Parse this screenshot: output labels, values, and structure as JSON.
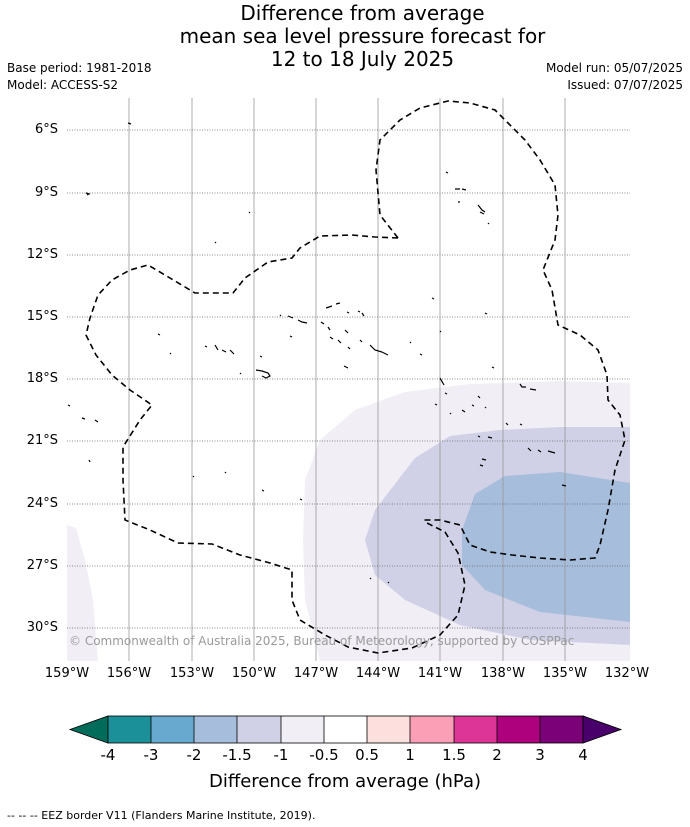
{
  "title": {
    "line1": "Difference from average",
    "line2": "mean sea level pressure forecast for",
    "line3": "12 to 18 July 2025"
  },
  "meta": {
    "base_period": "Base period: 1981-2018",
    "model": "Model: ACCESS-S2",
    "model_run": "Model run: 05/07/2025",
    "issued": "Issued: 07/07/2025"
  },
  "map": {
    "lat_labels": [
      "6°S",
      "9°S",
      "12°S",
      "15°S",
      "18°S",
      "21°S",
      "24°S",
      "27°S",
      "30°S"
    ],
    "lon_labels": [
      "159°W",
      "156°W",
      "153°W",
      "150°W",
      "147°W",
      "144°W",
      "141°W",
      "138°W",
      "135°W",
      "132°W"
    ],
    "copyright": "© Commonwealth of Australia 2025, Bureau of Meteorology, supported by COSPPac",
    "anomaly_colors": {
      "neg_0_5_to_neg_1": "#f1eef6",
      "neg_1_to_neg_1_5": "#d0d1e6",
      "neg_1_5_to_neg_2": "#a6bddb"
    }
  },
  "colorbar": {
    "title": "Difference from average (hPa)",
    "ticks": [
      "-4",
      "-3",
      "-2",
      "-1.5",
      "-1",
      "-0.5",
      "0.5",
      "1",
      "1.5",
      "2",
      "3",
      "4"
    ],
    "colors": [
      "#1c9099",
      "#67a9cf",
      "#a6bddb",
      "#d0d1e6",
      "#f1eef6",
      "#ffffff",
      "#fde0dd",
      "#fa9fb5",
      "#dd3497",
      "#ae017e",
      "#7a0177"
    ],
    "under_color": "#016c59",
    "over_color": "#49006a"
  },
  "footer": "--  --  -- EEZ border V11 (Flanders Marine Institute, 2019)."
}
